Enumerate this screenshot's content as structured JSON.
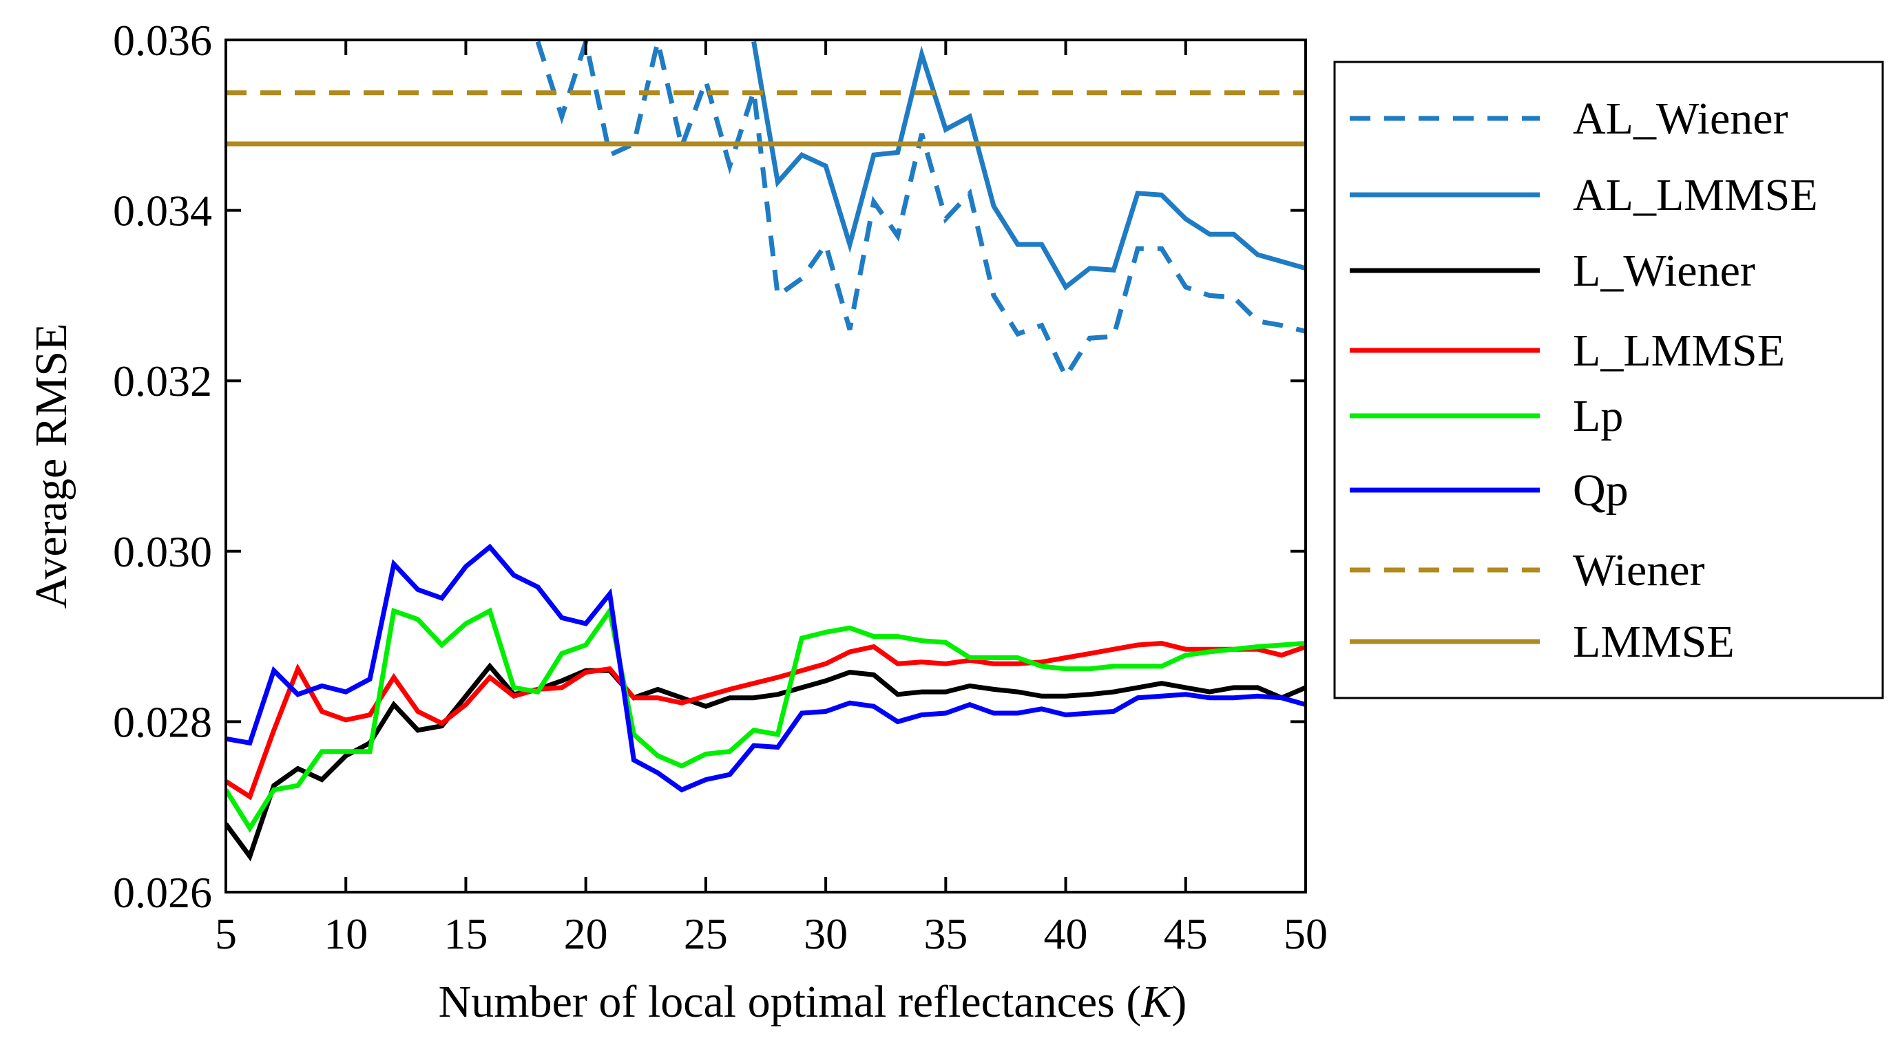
{
  "chart_data": {
    "type": "line",
    "title": "",
    "xlabel_prefix": "Number of local optimal reflectances (",
    "xlabel_var": "K",
    "xlabel_suffix": ")",
    "ylabel": "Average RMSE",
    "xlim": [
      5,
      50
    ],
    "ylim": [
      0.026,
      0.036
    ],
    "xticks": [
      5,
      10,
      15,
      20,
      25,
      30,
      35,
      40,
      45,
      50
    ],
    "xtick_labels": [
      "5",
      "10",
      "15",
      "20",
      "25",
      "30",
      "35",
      "40",
      "45",
      "50"
    ],
    "yticks": [
      0.026,
      0.028,
      0.03,
      0.032,
      0.034,
      0.036
    ],
    "ytick_labels": [
      "0.026",
      "0.028",
      "0.030",
      "0.032",
      "0.034",
      "0.036"
    ],
    "legend_position": "right-outside",
    "x": [
      5,
      6,
      7,
      8,
      9,
      10,
      11,
      12,
      13,
      14,
      15,
      16,
      17,
      18,
      19,
      20,
      21,
      22,
      23,
      24,
      25,
      26,
      27,
      28,
      29,
      30,
      31,
      32,
      33,
      34,
      35,
      36,
      37,
      38,
      39,
      40,
      41,
      42,
      43,
      44,
      45,
      46,
      47,
      48,
      49,
      50
    ],
    "series": [
      {
        "name": "AL_Wiener",
        "color": "#1f7cc4",
        "dash": true,
        "values": [
          null,
          null,
          null,
          null,
          null,
          null,
          null,
          null,
          null,
          null,
          null,
          null,
          null,
          0.03598,
          0.0351,
          0.03598,
          0.03465,
          0.03478,
          0.03598,
          0.03475,
          0.03552,
          0.03452,
          0.0354,
          0.033,
          0.0332,
          0.0336,
          0.0326,
          0.0341,
          0.0337,
          0.0349,
          0.0339,
          0.0342,
          0.033,
          0.03255,
          0.03265,
          0.03205,
          0.0325,
          0.03252,
          0.03355,
          0.03355,
          0.0331,
          0.033,
          0.03298,
          0.0327,
          0.03265,
          0.03258
        ]
      },
      {
        "name": "AL_LMMSE",
        "color": "#1f7cc4",
        "dash": false,
        "values": [
          null,
          null,
          null,
          null,
          null,
          null,
          null,
          null,
          null,
          null,
          null,
          null,
          null,
          null,
          null,
          null,
          null,
          null,
          null,
          null,
          null,
          null,
          0.03598,
          0.03433,
          0.03465,
          0.03452,
          0.0336,
          0.03465,
          0.03468,
          0.03583,
          0.03495,
          0.0351,
          0.03405,
          0.0336,
          0.0336,
          0.0331,
          0.03332,
          0.0333,
          0.0342,
          0.03418,
          0.0339,
          0.03372,
          0.03372,
          0.03348,
          0.0334,
          0.03332
        ]
      },
      {
        "name": "L_Wiener",
        "color": "#000000",
        "dash": false,
        "values": [
          0.0268,
          0.02642,
          0.02725,
          0.02745,
          0.02732,
          0.0276,
          0.02775,
          0.0282,
          0.0279,
          0.02795,
          0.0283,
          0.02865,
          0.02832,
          0.02838,
          0.02848,
          0.0286,
          0.0286,
          0.02828,
          0.02838,
          0.02828,
          0.02818,
          0.02828,
          0.02828,
          0.02832,
          0.0284,
          0.02848,
          0.02858,
          0.02855,
          0.02832,
          0.02835,
          0.02835,
          0.02842,
          0.02838,
          0.02835,
          0.0283,
          0.0283,
          0.02832,
          0.02835,
          0.0284,
          0.02845,
          0.0284,
          0.02835,
          0.0284,
          0.0284,
          0.02828,
          0.0284
        ]
      },
      {
        "name": "L_LMMSE",
        "color": "#ff0000",
        "dash": false,
        "values": [
          0.0273,
          0.02712,
          0.0279,
          0.02862,
          0.02812,
          0.02802,
          0.02808,
          0.02852,
          0.02812,
          0.02798,
          0.0282,
          0.02852,
          0.0283,
          0.02838,
          0.0284,
          0.02858,
          0.02862,
          0.02828,
          0.02828,
          0.02822,
          0.0283,
          0.02838,
          0.02845,
          0.02852,
          0.0286,
          0.02868,
          0.02882,
          0.02888,
          0.02868,
          0.0287,
          0.02868,
          0.02872,
          0.02868,
          0.02868,
          0.0287,
          0.02875,
          0.0288,
          0.02885,
          0.0289,
          0.02892,
          0.02885,
          0.02885,
          0.02885,
          0.02885,
          0.02878,
          0.02888
        ]
      },
      {
        "name": "Lp",
        "color": "#00ee00",
        "dash": false,
        "values": [
          0.0272,
          0.02675,
          0.0272,
          0.02725,
          0.02765,
          0.02765,
          0.02765,
          0.0293,
          0.0292,
          0.0289,
          0.02915,
          0.0293,
          0.0284,
          0.02835,
          0.0288,
          0.0289,
          0.0293,
          0.02785,
          0.0276,
          0.02748,
          0.02762,
          0.02765,
          0.0279,
          0.02785,
          0.02898,
          0.02905,
          0.0291,
          0.029,
          0.029,
          0.02895,
          0.02893,
          0.02875,
          0.02875,
          0.02875,
          0.02865,
          0.02862,
          0.02862,
          0.02865,
          0.02865,
          0.02865,
          0.02878,
          0.02882,
          0.02885,
          0.02888,
          0.0289,
          0.02892
        ]
      },
      {
        "name": "Qp",
        "color": "#0000ff",
        "dash": false,
        "values": [
          0.0278,
          0.02775,
          0.0286,
          0.02832,
          0.02842,
          0.02835,
          0.0285,
          0.02985,
          0.02955,
          0.02945,
          0.02982,
          0.03005,
          0.02972,
          0.02958,
          0.02922,
          0.02915,
          0.0295,
          0.02755,
          0.0274,
          0.0272,
          0.02732,
          0.02738,
          0.02772,
          0.0277,
          0.0281,
          0.02812,
          0.02822,
          0.02818,
          0.028,
          0.02808,
          0.0281,
          0.0282,
          0.0281,
          0.0281,
          0.02815,
          0.02808,
          0.0281,
          0.02812,
          0.02828,
          0.0283,
          0.02832,
          0.02828,
          0.02828,
          0.0283,
          0.02828,
          0.0282
        ]
      },
      {
        "name": "Wiener",
        "color": "#b08a1e",
        "dash": true,
        "constant": 0.03538
      },
      {
        "name": "LMMSE",
        "color": "#b08a1e",
        "dash": false,
        "constant": 0.03478
      }
    ]
  }
}
